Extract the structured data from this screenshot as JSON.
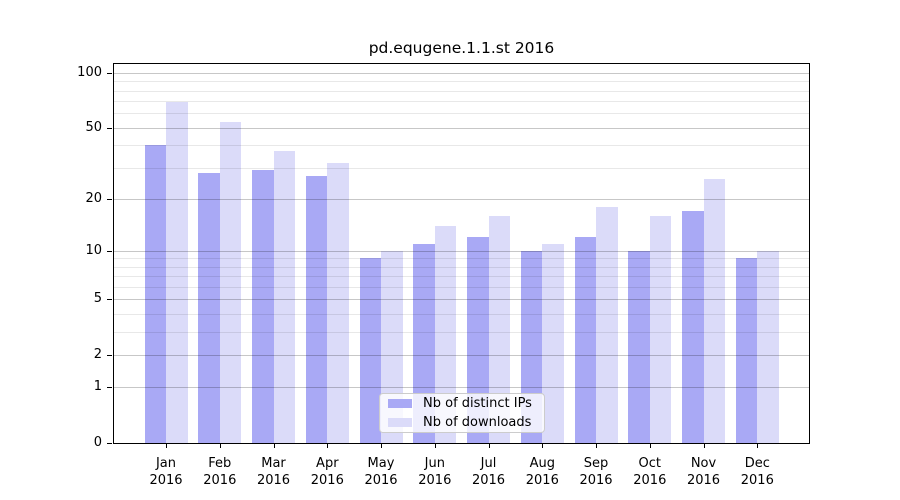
{
  "chart_data": {
    "type": "bar",
    "title": "pd.equgene.1.1.st 2016",
    "categories": [
      "Jan 2016",
      "Feb 2016",
      "Mar 2016",
      "Apr 2016",
      "May 2016",
      "Jun 2016",
      "Jul 2016",
      "Aug 2016",
      "Sep 2016",
      "Oct 2016",
      "Nov 2016",
      "Dec 2016"
    ],
    "series": [
      {
        "name": "Nb of distinct IPs",
        "color": "#a9a9f5",
        "values": [
          40,
          28,
          29,
          27,
          9,
          11,
          12,
          10,
          12,
          10,
          17,
          9
        ]
      },
      {
        "name": "Nb of downloads",
        "color": "#dbdbf9",
        "values": [
          69,
          54,
          37,
          32,
          10,
          14,
          16,
          11,
          18,
          16,
          26,
          10
        ]
      }
    ],
    "xlabel": "",
    "ylabel": "",
    "yscale": "log10(value+1)",
    "yticks": [
      0,
      1,
      2,
      5,
      10,
      20,
      50,
      100
    ],
    "y_minor_gridlines": [
      3,
      4,
      6,
      7,
      8,
      9,
      30,
      40,
      60,
      70,
      80,
      90
    ],
    "ylim": [
      0,
      112
    ],
    "grid": "horizontal",
    "legend_position": "lower center inside"
  },
  "colors": {
    "spine": "#000000",
    "grid_major": "#c7c7c7",
    "grid_minor": "#e9e9e9",
    "background": "#ffffff",
    "text": "#000000"
  }
}
